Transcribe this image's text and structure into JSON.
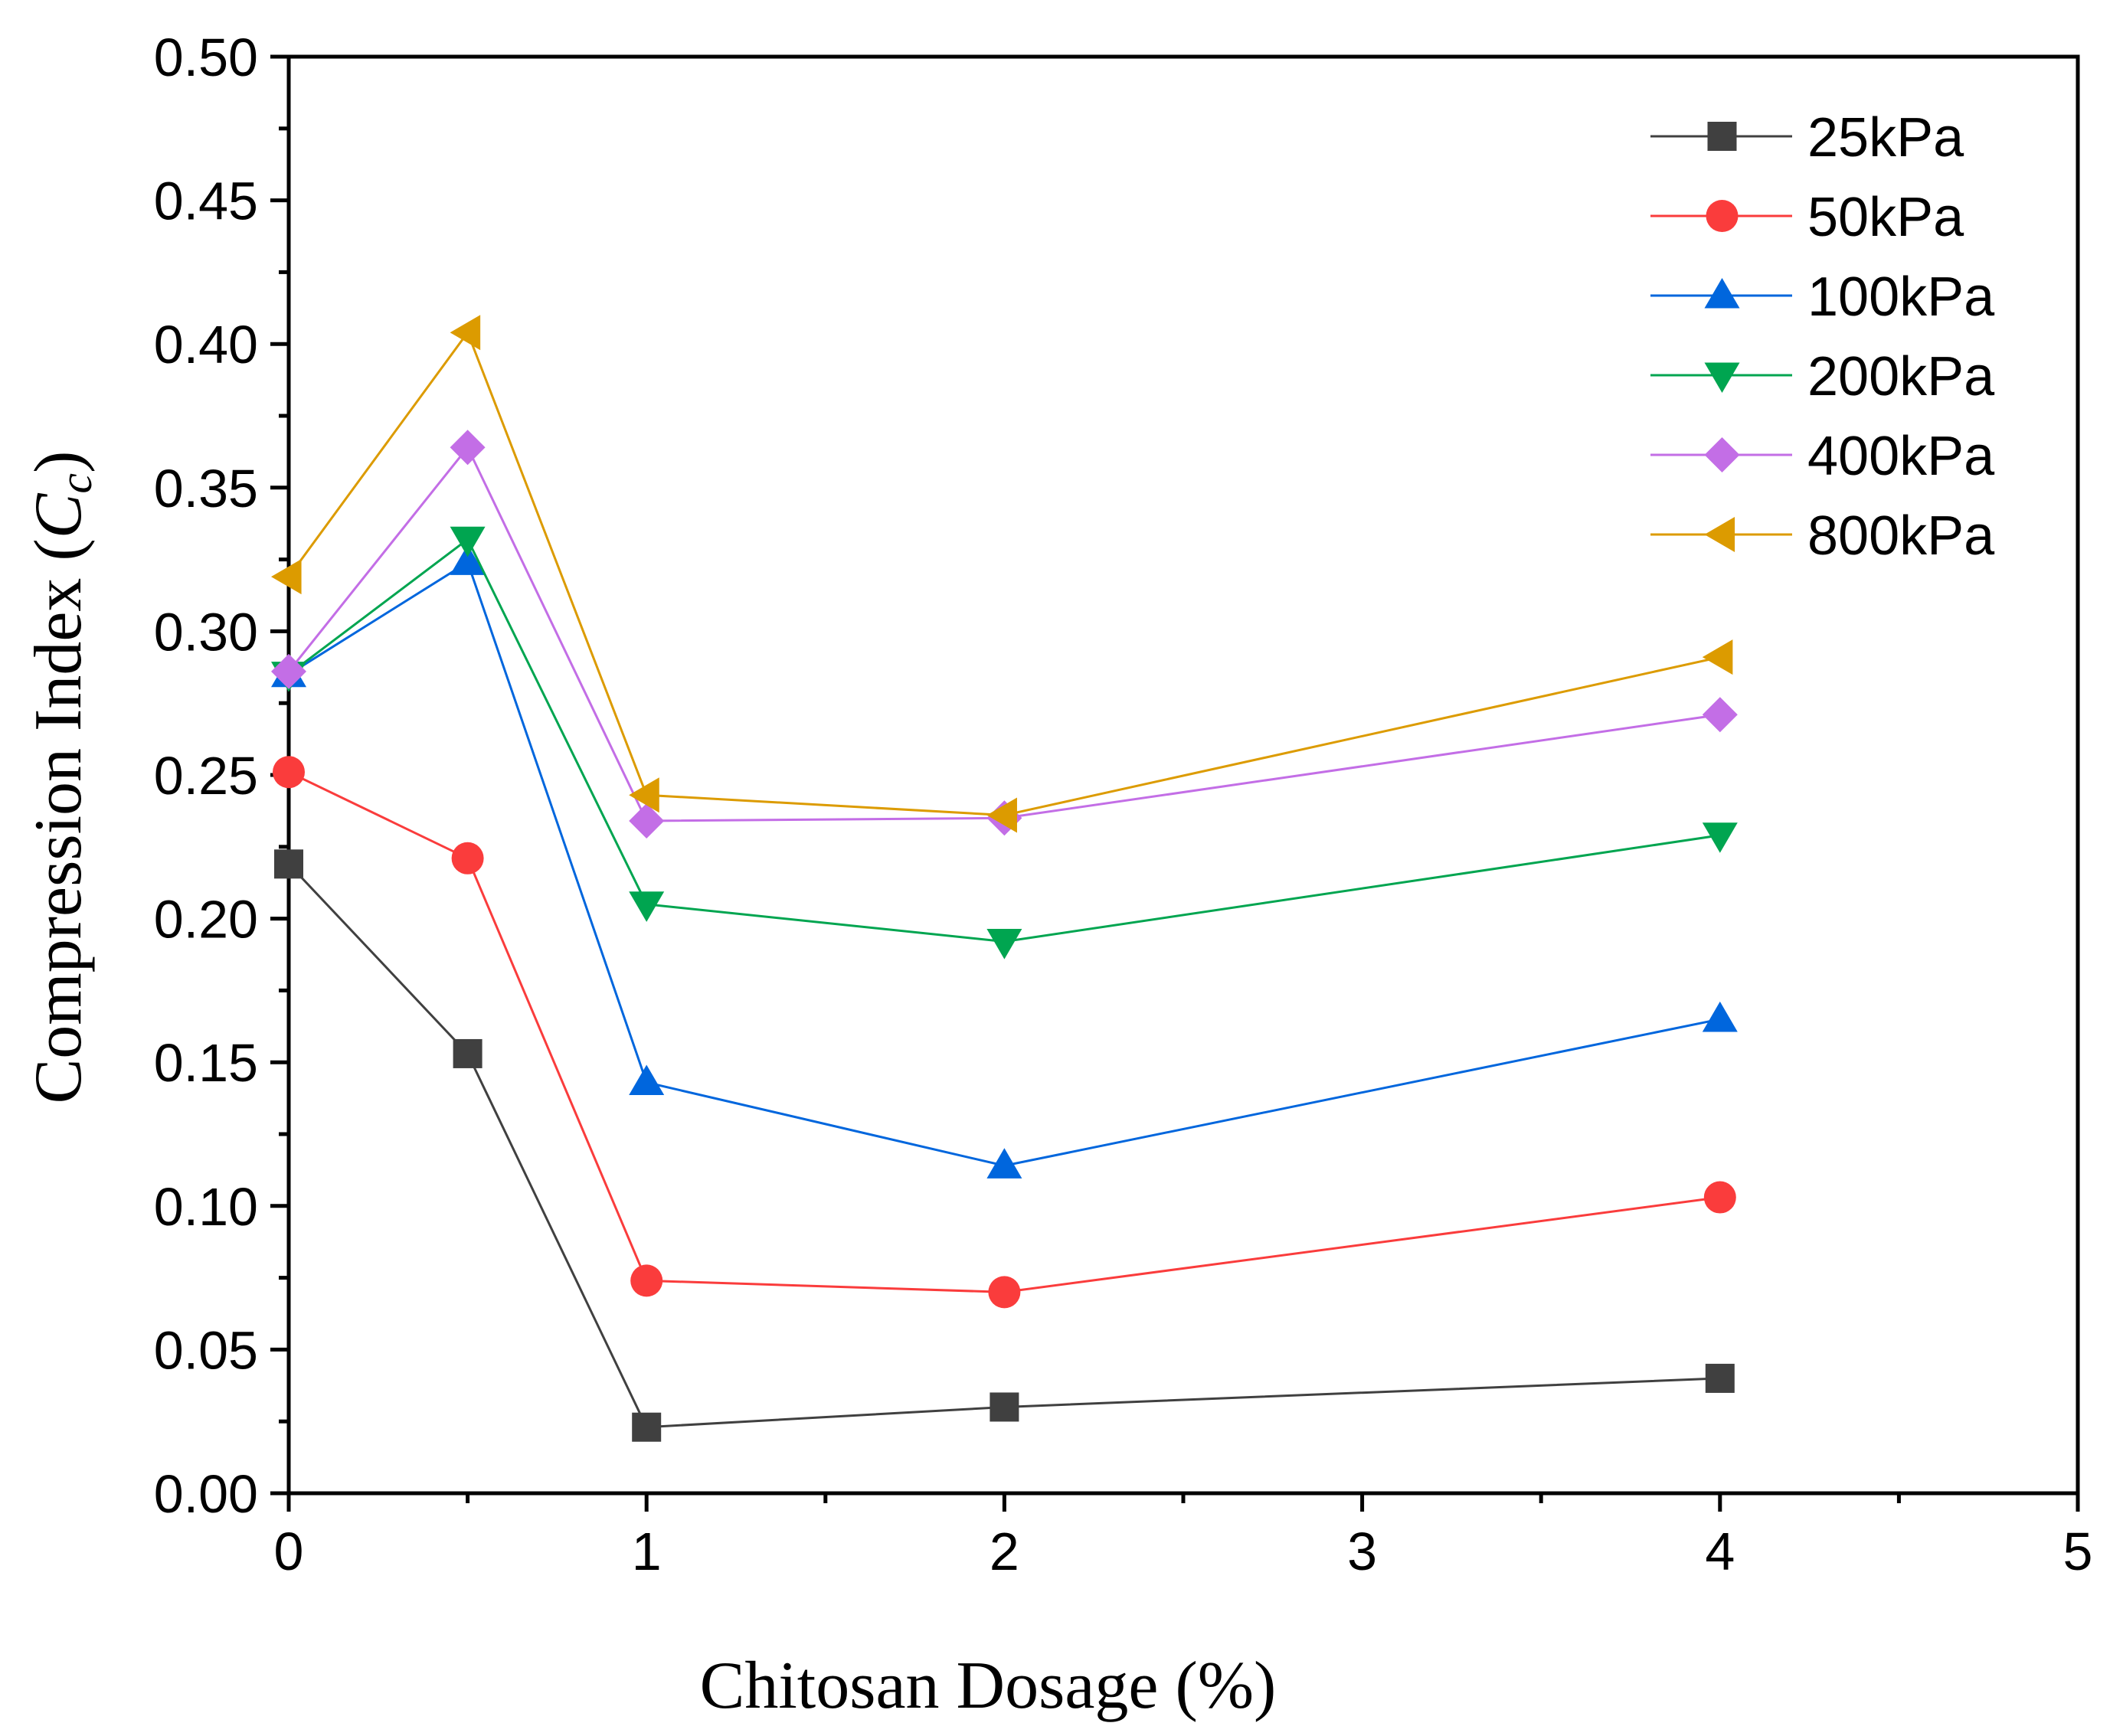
{
  "chart_data": {
    "type": "line",
    "title": "",
    "xlabel": "Chitosan Dosage (%)",
    "ylabel_main": "Compression Index (",
    "ylabel_symbol": "C",
    "ylabel_sub": "c",
    "ylabel_close": ")",
    "xlim": [
      0,
      5
    ],
    "ylim": [
      0,
      0.5
    ],
    "x_ticks": [
      0,
      1,
      2,
      3,
      4,
      5
    ],
    "x_tick_labels": [
      "0",
      "1",
      "2",
      "3",
      "4",
      "5"
    ],
    "y_ticks": [
      0,
      0.05,
      0.1,
      0.15,
      0.2,
      0.25,
      0.3,
      0.35,
      0.4,
      0.45,
      0.5
    ],
    "y_tick_labels": [
      "0.00",
      "0.05",
      "0.10",
      "0.15",
      "0.20",
      "0.25",
      "0.30",
      "0.35",
      "0.40",
      "0.45",
      "0.50"
    ],
    "grid": false,
    "legend_position": "top-right",
    "x": [
      0,
      0.5,
      1,
      2,
      4
    ],
    "series": [
      {
        "name": "25kPa",
        "color": "#404040",
        "marker": "square",
        "values": [
          0.219,
          0.153,
          0.023,
          0.03,
          0.04
        ]
      },
      {
        "name": "50kPa",
        "color": "#fa3c3c",
        "marker": "circle",
        "values": [
          0.251,
          0.221,
          0.074,
          0.07,
          0.103
        ]
      },
      {
        "name": "100kPa",
        "color": "#0066dd",
        "marker": "triangle-up",
        "values": [
          0.285,
          0.324,
          0.143,
          0.114,
          0.165
        ]
      },
      {
        "name": "200kPa",
        "color": "#00a550",
        "marker": "triangle-down",
        "values": [
          0.285,
          0.332,
          0.205,
          0.192,
          0.229
        ]
      },
      {
        "name": "400kPa",
        "color": "#c36ee6",
        "marker": "diamond",
        "values": [
          0.286,
          0.364,
          0.234,
          0.235,
          0.271
        ]
      },
      {
        "name": "800kPa",
        "color": "#dc9b00",
        "marker": "triangle-left",
        "values": [
          0.319,
          0.404,
          0.243,
          0.236,
          0.291
        ]
      }
    ]
  }
}
